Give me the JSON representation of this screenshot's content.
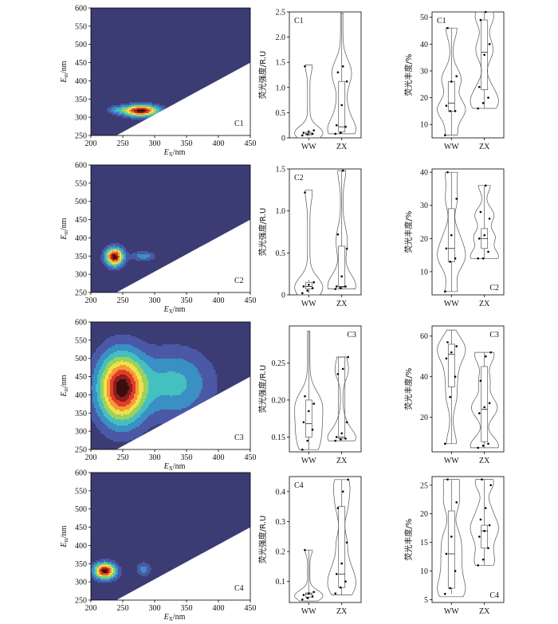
{
  "chart_data": {
    "type": "composite",
    "eem_x_label_main": "E",
    "eem_x_label_sub": "X",
    "eem_x_label_unit": "/nm",
    "eem_y_label_main": "E",
    "eem_y_label_sub": "m",
    "eem_y_label_unit": "/nm",
    "eem_x_ticks": [
      200,
      250,
      300,
      350,
      400,
      450
    ],
    "eem_y_ticks": [
      250,
      300,
      350,
      400,
      450,
      500,
      550,
      600
    ],
    "eem_xlim": [
      200,
      450
    ],
    "eem_ylim": [
      250,
      600
    ],
    "intensity_ylabel": "荧光强度/R.U",
    "abundance_ylabel": "荧光丰度/%",
    "groups": [
      "WW",
      "ZX"
    ],
    "colors": {
      "background": "#3b3c74",
      "scatter": "#ffffff",
      "outline": "#555555",
      "levels": [
        "#3b3c74",
        "#4a58a6",
        "#3a8fc4",
        "#45c0c0",
        "#9ad25d",
        "#f2e04a",
        "#f29a3a",
        "#e23b2a",
        "#8e1d1d",
        "#3a0e0e"
      ]
    },
    "components": [
      {
        "label": "C1",
        "eem_peaks": [
          {
            "ex": 278,
            "em": 318,
            "sx": 18,
            "sy": 10,
            "amp": 1.0
          },
          {
            "ex": 240,
            "em": 320,
            "sx": 10,
            "sy": 7,
            "amp": 0.18
          }
        ],
        "intensity": {
          "ylim": [
            0,
            2.5
          ],
          "ticks": [
            0,
            0.5,
            1.0,
            1.5,
            2.0,
            2.5
          ],
          "tick_labels": [
            "0",
            "0.5",
            "1.0",
            "1.5",
            "2.0",
            "2.5"
          ],
          "label_pos": "top-left",
          "WW": {
            "points": [
              0.05,
              0.07,
              0.08,
              0.1,
              0.12,
              0.15,
              1.42
            ],
            "box": [
              0.04,
              0.06,
              0.08,
              0.11,
              0.16
            ],
            "vmin": 0.0,
            "vmax": 1.45
          },
          "ZX": {
            "points": [
              0.08,
              0.1,
              0.22,
              0.25,
              0.65,
              1.12,
              1.3,
              1.42
            ],
            "box": [
              0.08,
              0.12,
              0.22,
              1.12,
              2.48
            ],
            "vmin": 0.08,
            "vmax": 2.48
          }
        },
        "abundance": {
          "ylim": [
            5,
            52
          ],
          "ticks": [
            10,
            20,
            30,
            40,
            50
          ],
          "tick_labels": [
            "10",
            "20",
            "30",
            "40",
            "50"
          ],
          "label_pos": "top-left",
          "WW": {
            "points": [
              6,
              15,
              15,
              17,
              26,
              28,
              46
            ],
            "box": [
              6,
              15,
              18,
              26,
              46
            ],
            "vmin": 6,
            "vmax": 46
          },
          "ZX": {
            "points": [
              16,
              18,
              20,
              24,
              36,
              40,
              49,
              52
            ],
            "box": [
              16,
              23,
              37,
              49,
              52
            ],
            "vmin": 16,
            "vmax": 52
          }
        }
      },
      {
        "label": "C2",
        "eem_peaks": [
          {
            "ex": 237,
            "em": 348,
            "sx": 9,
            "sy": 16,
            "amp": 1.0
          },
          {
            "ex": 282,
            "em": 350,
            "sx": 12,
            "sy": 8,
            "amp": 0.22
          }
        ],
        "intensity": {
          "ylim": [
            0,
            1.5
          ],
          "ticks": [
            0,
            0.5,
            1.0,
            1.5
          ],
          "tick_labels": [
            "0",
            "0.5",
            "1.0",
            "1.5"
          ],
          "label_pos": "top-left",
          "WW": {
            "points": [
              0.02,
              0.05,
              0.08,
              0.1,
              0.12,
              0.15,
              1.22
            ],
            "box": [
              0.02,
              0.07,
              0.1,
              0.15,
              0.18
            ],
            "vmin": 0.0,
            "vmax": 1.25
          },
          "ZX": {
            "points": [
              0.07,
              0.08,
              0.1,
              0.1,
              0.22,
              0.55,
              0.72,
              1.48
            ],
            "box": [
              0.07,
              0.09,
              0.1,
              0.58,
              1.48
            ],
            "vmin": 0.07,
            "vmax": 1.48
          }
        },
        "abundance": {
          "ylim": [
            3,
            41
          ],
          "ticks": [
            10,
            20,
            30,
            40
          ],
          "tick_labels": [
            "10",
            "20",
            "30",
            "40"
          ],
          "label_pos": "bottom-right",
          "WW": {
            "points": [
              4,
              13,
              14,
              17,
              21,
              32,
              40
            ],
            "box": [
              4,
              13,
              17,
              29,
              40
            ],
            "vmin": 4,
            "vmax": 40
          },
          "ZX": {
            "points": [
              14,
              14,
              16,
              20,
              21,
              26,
              28,
              36
            ],
            "box": [
              14,
              17,
              20,
              23,
              36
            ],
            "vmin": 14,
            "vmax": 36
          }
        }
      },
      {
        "label": "C3",
        "eem_peaks": [
          {
            "ex": 248,
            "em": 418,
            "sx": 24,
            "sy": 62,
            "amp": 1.0
          },
          {
            "ex": 330,
            "em": 430,
            "sx": 38,
            "sy": 60,
            "amp": 0.3
          }
        ],
        "intensity": {
          "ylim": [
            0.13,
            0.3
          ],
          "ticks": [
            0.15,
            0.2,
            0.25
          ],
          "tick_labels": [
            "0.15",
            "0.20",
            "0.25"
          ],
          "label_pos": "top-right",
          "WW": {
            "points": [
              0.133,
              0.145,
              0.16,
              0.17,
              0.185,
              0.195,
              0.205
            ],
            "box": [
              0.133,
              0.15,
              0.168,
              0.2,
              0.293
            ],
            "vmin": 0.133,
            "vmax": 0.293
          },
          "ZX": {
            "points": [
              0.145,
              0.147,
              0.148,
              0.15,
              0.155,
              0.17,
              0.235,
              0.242,
              0.258
            ],
            "box": [
              0.145,
              0.148,
              0.15,
              0.258,
              0.258
            ],
            "vmin": 0.145,
            "vmax": 0.258
          }
        },
        "abundance": {
          "ylim": [
            3,
            65
          ],
          "ticks": [
            20,
            40,
            60
          ],
          "tick_labels": [
            "20",
            "40",
            "60"
          ],
          "label_pos": "top-right",
          "WW": {
            "points": [
              7,
              30,
              40,
              49,
              52,
              55,
              57
            ],
            "box": [
              7,
              35,
              51,
              56,
              63
            ],
            "vmin": 7,
            "vmax": 63
          },
          "ZX": {
            "points": [
              5,
              6,
              7,
              22,
              25,
              27,
              38,
              50,
              52
            ],
            "box": [
              5,
              8,
              24,
              45,
              52
            ],
            "vmin": 5,
            "vmax": 52
          }
        }
      },
      {
        "label": "C4",
        "eem_peaks": [
          {
            "ex": 222,
            "em": 330,
            "sx": 11,
            "sy": 14,
            "amp": 1.0
          },
          {
            "ex": 283,
            "em": 335,
            "sx": 7,
            "sy": 12,
            "amp": 0.2
          }
        ],
        "intensity": {
          "ylim": [
            0.03,
            0.45
          ],
          "ticks": [
            0.1,
            0.2,
            0.3,
            0.4
          ],
          "tick_labels": [
            "0.1",
            "0.2",
            "0.3",
            "0.4"
          ],
          "label_pos": "top-left",
          "WW": {
            "points": [
              0.04,
              0.045,
              0.05,
              0.055,
              0.06,
              0.065,
              0.205
            ],
            "box": [
              0.04,
              0.048,
              0.058,
              0.062,
              0.205
            ],
            "vmin": 0.035,
            "vmax": 0.205
          },
          "ZX": {
            "points": [
              0.06,
              0.08,
              0.1,
              0.125,
              0.16,
              0.23,
              0.345,
              0.4,
              0.44
            ],
            "box": [
              0.055,
              0.08,
              0.125,
              0.35,
              0.44
            ],
            "vmin": 0.055,
            "vmax": 0.44
          }
        },
        "abundance": {
          "ylim": [
            4.5,
            26.5
          ],
          "ticks": [
            5,
            10,
            15,
            20,
            25
          ],
          "tick_labels": [
            "5",
            "10",
            "15",
            "20",
            "25"
          ],
          "label_pos": "bottom-right",
          "WW": {
            "points": [
              6,
              7,
              10,
              13,
              16,
              22,
              26
            ],
            "box": [
              6,
              7,
              13,
              20.5,
              26
            ],
            "vmin": 5.5,
            "vmax": 26
          },
          "ZX": {
            "points": [
              11,
              12,
              14,
              16,
              17,
              18,
              19,
              21,
              25,
              26
            ],
            "box": [
              11,
              14,
              17,
              18,
              26
            ],
            "vmin": 11,
            "vmax": 26
          }
        }
      }
    ]
  }
}
